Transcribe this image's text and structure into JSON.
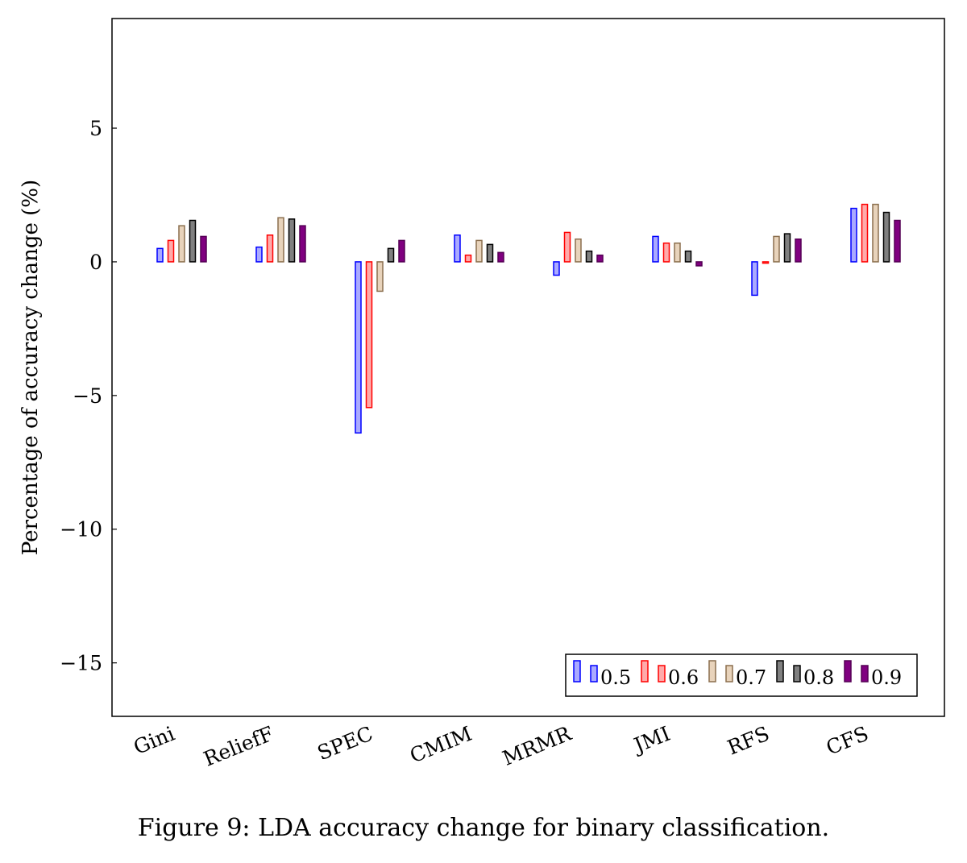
{
  "caption": "Figure 9: LDA accuracy change for binary classification.",
  "chart_data": {
    "type": "bar",
    "title": "",
    "xlabel": "",
    "ylabel": "Percentage of accuracy change (%)",
    "ylim": [
      -17,
      9.1
    ],
    "yticks": [
      5,
      0,
      -5,
      -10,
      -15
    ],
    "ytick_labels": [
      "5",
      "0",
      "−5",
      "−10",
      "−15"
    ],
    "grid": false,
    "legend_position": "bottom-right",
    "categories": [
      "Gini",
      "ReliefF",
      "SPEC",
      "CMIM",
      "MRMR",
      "JMI",
      "RFS",
      "CFS"
    ],
    "series": [
      {
        "name": "0.5",
        "stroke": "#0000ff",
        "fill": "#aaaaff",
        "values": [
          0.5,
          0.55,
          -6.4,
          1.0,
          -0.5,
          0.95,
          -1.25,
          2.0
        ]
      },
      {
        "name": "0.6",
        "stroke": "#ff0000",
        "fill": "#ffaaaa",
        "values": [
          0.8,
          1.0,
          -5.45,
          0.25,
          1.1,
          0.7,
          -0.05,
          2.15
        ]
      },
      {
        "name": "0.7",
        "stroke": "#8b6f4e",
        "fill": "#e8d3bb",
        "values": [
          1.35,
          1.65,
          -1.1,
          0.8,
          0.85,
          0.7,
          0.95,
          2.15
        ]
      },
      {
        "name": "0.8",
        "stroke": "#000000",
        "fill": "#808080",
        "values": [
          1.55,
          1.6,
          0.5,
          0.65,
          0.4,
          0.4,
          1.05,
          1.85
        ]
      },
      {
        "name": "0.9",
        "stroke": "#550055",
        "fill": "#800080",
        "values": [
          0.95,
          1.35,
          0.8,
          0.35,
          0.25,
          -0.15,
          0.85,
          1.55
        ]
      }
    ]
  }
}
